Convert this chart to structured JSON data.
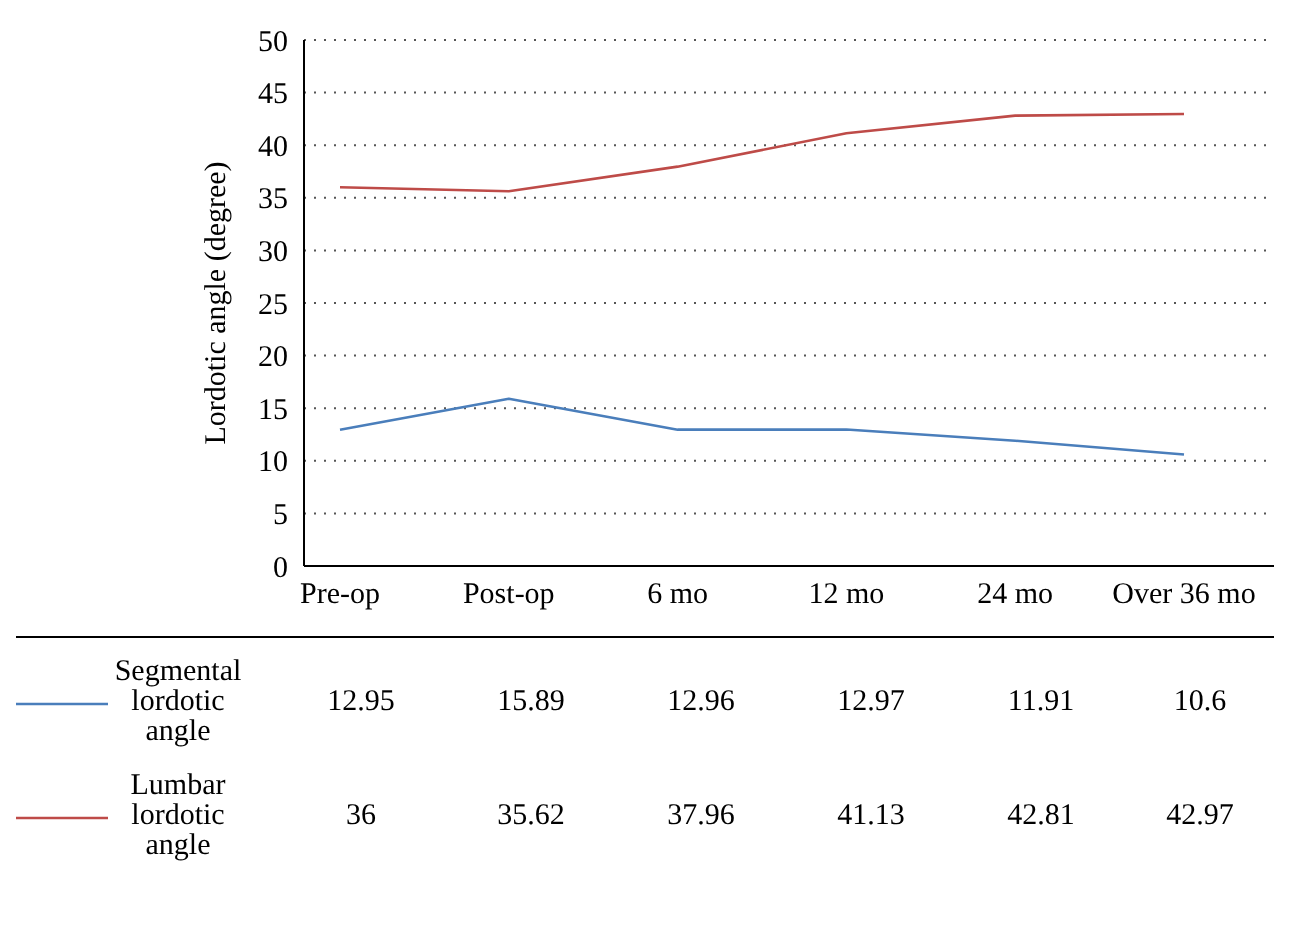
{
  "chart_data": {
    "type": "line",
    "ylabel": "Lordotic angle (degree)",
    "categories": [
      "Pre-op",
      "Post-op",
      "6 mo",
      "12 mo",
      "24 mo",
      "Over 36 mo"
    ],
    "series": [
      {
        "name": "Segmental lordotic angle",
        "color": "#4a7ebb",
        "values": [
          12.95,
          15.89,
          12.96,
          12.97,
          11.91,
          10.6
        ]
      },
      {
        "name": "Lumbar lordotic angle",
        "color": "#be4b48",
        "values": [
          36,
          35.62,
          37.96,
          41.13,
          42.81,
          42.97
        ]
      }
    ],
    "ylim": [
      0,
      50
    ],
    "yticks": [
      0,
      5,
      10,
      15,
      20,
      25,
      30,
      35,
      40,
      45,
      50
    ],
    "grid": "y",
    "legend": "bottom",
    "data_labels": true,
    "marker": "none",
    "line_style": "solid"
  }
}
